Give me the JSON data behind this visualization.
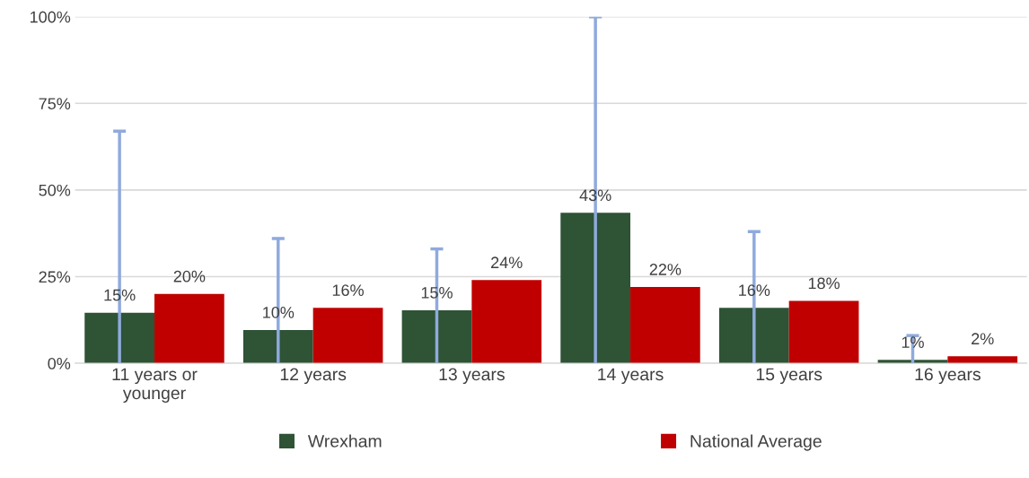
{
  "chart_data": {
    "type": "bar",
    "categories": [
      "11 years or\nyounger",
      "12 years",
      "13 years",
      "14 years",
      "15 years",
      "16 years"
    ],
    "series": [
      {
        "name": "Wrexham",
        "color": "#2e5335",
        "values": [
          14.6,
          9.6,
          15.3,
          43.4,
          16,
          1
        ],
        "value_labels": [
          "15%",
          "10%",
          "15%",
          "43%",
          "16%",
          "1%"
        ],
        "errors": [
          [
            0,
            67
          ],
          [
            0,
            36
          ],
          [
            0,
            33
          ],
          [
            0,
            100
          ],
          [
            0,
            38
          ],
          [
            0,
            8
          ]
        ]
      },
      {
        "name": "National Average",
        "color": "#c00000",
        "values": [
          20,
          16,
          24,
          22,
          18,
          2
        ],
        "value_labels": [
          "20%",
          "16%",
          "24%",
          "22%",
          "18%",
          "2%"
        ]
      }
    ],
    "ylim": [
      0,
      100
    ],
    "yticks": [
      {
        "value": 0,
        "label": "0%"
      },
      {
        "value": 25,
        "label": "25%"
      },
      {
        "value": 50,
        "label": "50%"
      },
      {
        "value": 75,
        "label": "75%"
      },
      {
        "value": 100,
        "label": "100%"
      }
    ],
    "grid": "y",
    "legend": "bottom"
  }
}
